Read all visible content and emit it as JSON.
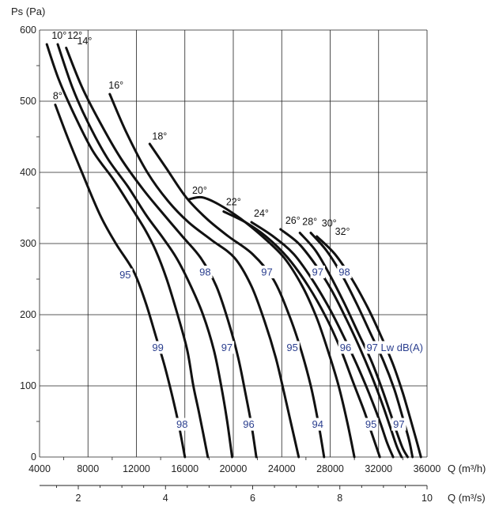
{
  "chart_data": {
    "type": "line",
    "xlabel": "Q (m³/h)",
    "ylabel": "Ps  (Pa)",
    "x2label": "Q (m³/s)",
    "xlim": [
      4000,
      36000
    ],
    "ylim": [
      0,
      600
    ],
    "x2lim": [
      1.111,
      10
    ],
    "grid": true,
    "x_ticks": [
      "4000",
      "8000",
      "12000",
      "16000",
      "20000",
      "24000",
      "28000",
      "32000",
      "36000"
    ],
    "y_ticks": [
      "0",
      "100",
      "200",
      "300",
      "400",
      "500",
      "600"
    ],
    "x2_ticks": [
      "2",
      "4",
      "6",
      "8",
      "10"
    ],
    "noise_label_color": "#2b3f8f",
    "line_color": "#111111",
    "series": [
      {
        "name": "8°",
        "x": [
          5300,
          6300,
          7500,
          9000,
          10300,
          11800,
          12800,
          13600,
          14300,
          14900,
          15500,
          16000
        ],
        "y": [
          495,
          450,
          400,
          340,
          300,
          260,
          215,
          170,
          130,
          90,
          45,
          0
        ]
      },
      {
        "name": "10°",
        "x": [
          4600,
          5600,
          6900,
          8400,
          10100,
          11600,
          12700,
          13600,
          14500,
          15400,
          16200,
          16700,
          17200,
          17900
        ],
        "y": [
          580,
          530,
          480,
          430,
          390,
          350,
          320,
          290,
          250,
          200,
          150,
          100,
          60,
          0
        ]
      },
      {
        "name": "12°",
        "x": [
          5500,
          6700,
          8000,
          9600,
          11300,
          12800,
          14100,
          15300,
          16500,
          17500,
          18400,
          19000,
          19500,
          19900
        ],
        "y": [
          580,
          520,
          470,
          420,
          380,
          340,
          310,
          280,
          240,
          200,
          150,
          100,
          50,
          0
        ]
      },
      {
        "name": "14°",
        "x": [
          6200,
          7500,
          9000,
          10700,
          12600,
          14300,
          15800,
          17300,
          18600,
          19600,
          20400,
          21000,
          21500,
          21900
        ],
        "y": [
          575,
          520,
          470,
          420,
          375,
          340,
          310,
          280,
          240,
          190,
          140,
          90,
          45,
          0
        ]
      },
      {
        "name": "16°",
        "x": [
          9800,
          11200,
          12900,
          14600,
          16300,
          18200,
          20100,
          21500,
          22600,
          23500,
          24200,
          24800,
          25400
        ],
        "y": [
          510,
          455,
          400,
          360,
          330,
          305,
          280,
          240,
          190,
          140,
          90,
          45,
          0
        ]
      },
      {
        "name": "18°",
        "x": [
          13100,
          14500,
          16100,
          17800,
          19600,
          21600,
          23300,
          24600,
          25600,
          26400,
          27000,
          27500
        ],
        "y": [
          440,
          405,
          365,
          335,
          310,
          285,
          250,
          200,
          150,
          100,
          50,
          0
        ]
      },
      {
        "name": "20°",
        "x": [
          16300,
          17400,
          18800,
          20600,
          22400,
          24200,
          25700,
          26900,
          27900,
          28700,
          29400,
          30000
        ],
        "y": [
          362,
          365,
          355,
          335,
          310,
          280,
          240,
          195,
          145,
          100,
          50,
          0
        ]
      },
      {
        "name": "22°",
        "x": [
          19200,
          21000,
          22700,
          24500,
          26200,
          27700,
          28900,
          29900,
          30800,
          31500,
          32100
        ],
        "y": [
          345,
          330,
          310,
          280,
          240,
          195,
          150,
          105,
          65,
          30,
          0
        ]
      },
      {
        "name": "24°",
        "x": [
          21500,
          23300,
          25000,
          26500,
          27900,
          29100,
          30200,
          31200,
          32100,
          32700,
          33200
        ],
        "y": [
          330,
          310,
          285,
          250,
          210,
          170,
          130,
          90,
          50,
          20,
          0
        ]
      },
      {
        "name": "26°",
        "x": [
          23900,
          25400,
          26800,
          28100,
          29300,
          30400,
          31400,
          32300,
          33000,
          33500,
          33900
        ],
        "y": [
          320,
          300,
          270,
          235,
          195,
          155,
          115,
          75,
          40,
          15,
          0
        ]
      },
      {
        "name": "28°",
        "x": [
          25500,
          26800,
          28000,
          29200,
          30300,
          31400,
          32300,
          33000,
          33600,
          34000,
          34400
        ],
        "y": [
          315,
          290,
          255,
          215,
          175,
          135,
          95,
          60,
          30,
          12,
          0
        ]
      },
      {
        "name": "30°",
        "x": [
          26400,
          27700,
          29000,
          30200,
          31300,
          32400,
          33300,
          34000,
          34500,
          34800
        ],
        "y": [
          315,
          290,
          255,
          215,
          175,
          135,
          95,
          55,
          25,
          0
        ]
      },
      {
        "name": "32°",
        "x": [
          26900,
          28400,
          29800,
          31100,
          32200,
          33200,
          34000,
          34600,
          35100,
          35500
        ],
        "y": [
          310,
          285,
          250,
          210,
          170,
          130,
          90,
          55,
          25,
          0
        ]
      }
    ],
    "annotations": [
      {
        "text": "10°",
        "x": 5000,
        "y": 588
      },
      {
        "text": "12°",
        "x": 6300,
        "y": 588
      },
      {
        "text": "14°",
        "x": 7100,
        "y": 580
      },
      {
        "text": "8°",
        "x": 5100,
        "y": 503
      },
      {
        "text": "16°",
        "x": 9700,
        "y": 518
      },
      {
        "text": "18°",
        "x": 13300,
        "y": 446
      },
      {
        "text": "20°",
        "x": 16600,
        "y": 370
      },
      {
        "text": "22°",
        "x": 19400,
        "y": 354
      },
      {
        "text": "24°",
        "x": 21700,
        "y": 338
      },
      {
        "text": "26°",
        "x": 24300,
        "y": 328
      },
      {
        "text": "28°",
        "x": 25700,
        "y": 326
      },
      {
        "text": "30°",
        "x": 27300,
        "y": 324
      },
      {
        "text": "32°",
        "x": 28400,
        "y": 312
      }
    ],
    "noise_labels": [
      {
        "text": "95",
        "x": 10600,
        "y": 256
      },
      {
        "text": "99",
        "x": 13300,
        "y": 154
      },
      {
        "text": "98",
        "x": 15300,
        "y": 46
      },
      {
        "text": "98",
        "x": 17200,
        "y": 260
      },
      {
        "text": "97",
        "x": 19000,
        "y": 154
      },
      {
        "text": "96",
        "x": 20800,
        "y": 46
      },
      {
        "text": "97",
        "x": 22300,
        "y": 260
      },
      {
        "text": "95",
        "x": 24400,
        "y": 154
      },
      {
        "text": "94",
        "x": 26500,
        "y": 46
      },
      {
        "text": "97",
        "x": 26500,
        "y": 260
      },
      {
        "text": "98",
        "x": 28700,
        "y": 260
      },
      {
        "text": "96",
        "x": 28800,
        "y": 154
      },
      {
        "text": "97 Lw dB(A)",
        "x": 31000,
        "y": 154
      },
      {
        "text": "95",
        "x": 30900,
        "y": 46
      },
      {
        "text": "97",
        "x": 33200,
        "y": 46
      }
    ]
  }
}
